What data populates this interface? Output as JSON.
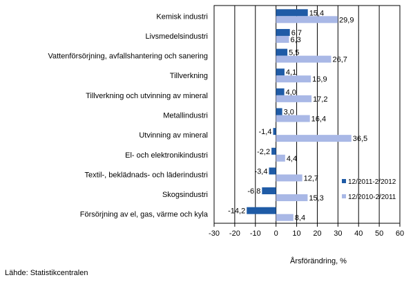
{
  "chart_data": {
    "type": "bar",
    "orientation": "horizontal",
    "categories": [
      "Kemisk industri",
      "Livsmedelsindustri",
      "Vattenförsörjning, avfallshantering och sanering",
      "Tillverkning",
      "Tillverkning och utvinning av mineral",
      "Metallindustri",
      "Utvinning av mineral",
      "El- och elektronikindustri",
      "Textil-, beklädnads- och läderindustri",
      "Skogsindustri",
      "Försörjning av el, gas, värme och kyla"
    ],
    "series": [
      {
        "name": "12/2011-2/2012",
        "color": "#1f5ba6",
        "values": [
          15.4,
          6.7,
          5.5,
          4.1,
          4.0,
          3.0,
          -1.4,
          -2.2,
          -3.4,
          -6.8,
          -14.2
        ],
        "labels": [
          "15,4",
          "6,7",
          "5,5",
          "4,1",
          "4,0",
          "3,0",
          "-1,4",
          "-2,2",
          "-3,4",
          "-6,8",
          "-14,2"
        ]
      },
      {
        "name": "12/2010-2/2011",
        "color": "#a9b8e6",
        "values": [
          29.9,
          6.3,
          26.7,
          16.9,
          17.2,
          16.4,
          36.5,
          4.4,
          12.7,
          15.3,
          8.4
        ],
        "labels": [
          "29,9",
          "6,3",
          "26,7",
          "16,9",
          "17,2",
          "16,4",
          "36,5",
          "4,4",
          "12,7",
          "15,3",
          "8,4"
        ]
      }
    ],
    "xlim": [
      -30,
      60
    ],
    "xticks": [
      -30,
      -20,
      -10,
      0,
      10,
      20,
      30,
      40,
      50,
      60
    ],
    "xlabel": "Årsförändring, %",
    "grid": "vertical",
    "legend_position": "bottom-right"
  },
  "source": "Lähde: Statistikcentralen"
}
